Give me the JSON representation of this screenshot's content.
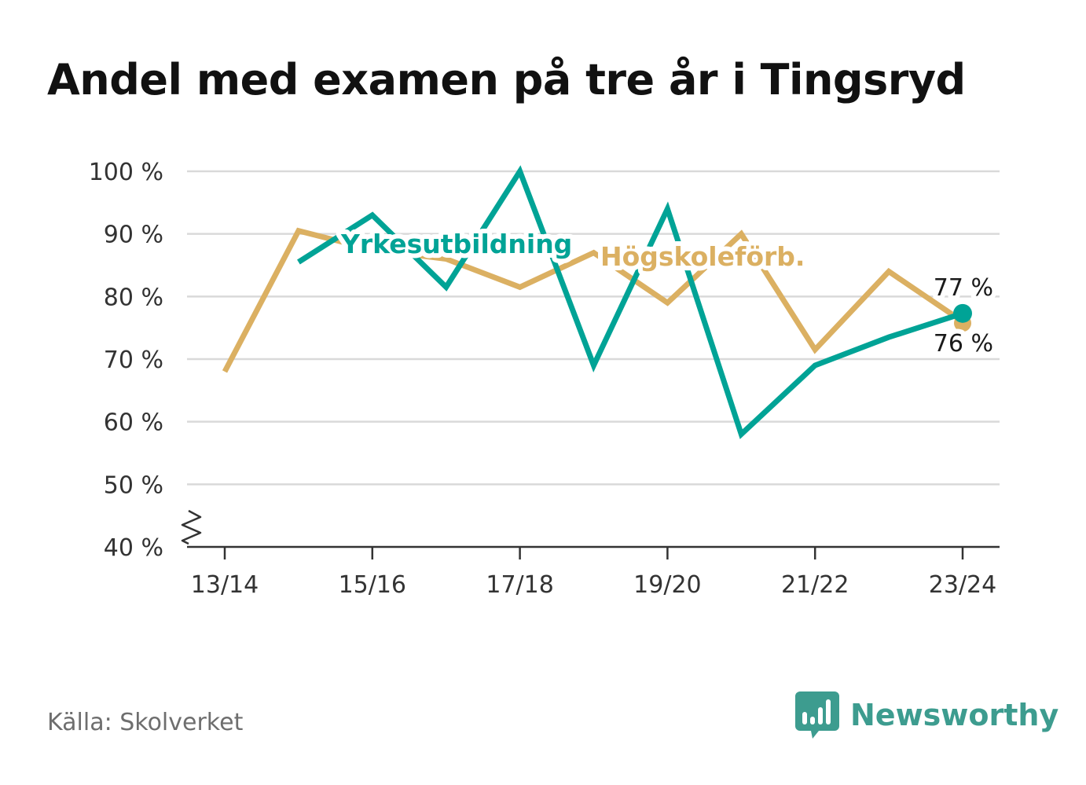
{
  "title": "Andel med examen på tre år i Tingsryd",
  "source": "Källa: Skolverket",
  "brand": {
    "name": "Newsworthy",
    "icon": "newsworthy-logo-icon",
    "color": "#3d9c8f"
  },
  "colors": {
    "yrke": "#00a396",
    "hogskole": "#dbb062",
    "grid": "#d9d9d9",
    "axis": "#333333"
  },
  "chart_data": {
    "type": "line",
    "x": [
      "13/14",
      "14/15",
      "15/16",
      "16/17",
      "17/18",
      "18/19",
      "19/20",
      "20/21",
      "21/22",
      "22/23",
      "23/24"
    ],
    "x_tick_labels": [
      "13/14",
      "15/16",
      "17/18",
      "19/20",
      "21/22",
      "23/24"
    ],
    "ylim": [
      40,
      100
    ],
    "y_ticks": [
      40,
      50,
      60,
      70,
      80,
      90,
      100
    ],
    "y_tick_labels": [
      "40 %",
      "50 %",
      "60 %",
      "70 %",
      "80 %",
      "90 %",
      "100 %"
    ],
    "y_axis_break": true,
    "grid": true,
    "series": [
      {
        "name": "Yrkesutbildning",
        "color": "#00a396",
        "values": [
          null,
          85.5,
          93,
          81.5,
          100,
          69,
          94,
          58,
          69,
          73.5,
          77.3
        ],
        "end_label": "77 %"
      },
      {
        "name": "Högskoleförb.",
        "color": "#dbb062",
        "values": [
          68,
          90.5,
          87.5,
          86,
          81.5,
          87,
          79,
          90,
          71.5,
          84,
          76
        ],
        "end_label": "76 %"
      }
    ]
  }
}
